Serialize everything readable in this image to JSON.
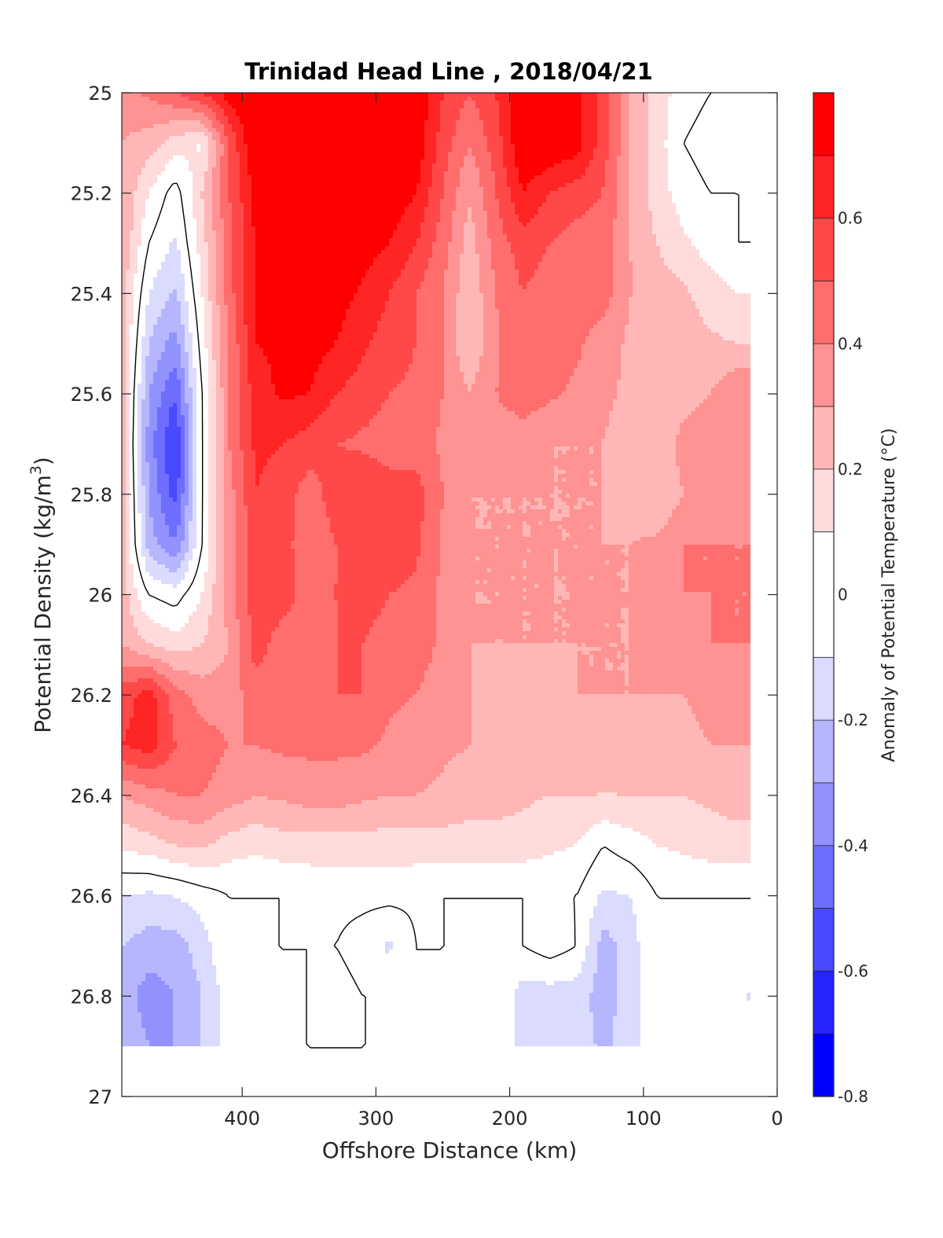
{
  "chart_data": {
    "type": "heatmap",
    "title": "Trinidad Head Line , 2018/04/21",
    "xlabel": "Offshore Distance (km)",
    "ylabel": "Potential Density (kg/m",
    "ylabel_superscript": "3",
    "ylabel_suffix": ")",
    "xlim": [
      490,
      0
    ],
    "x_reversed": true,
    "ylim": [
      25,
      27
    ],
    "y_reversed": true,
    "x_ticks": [
      400,
      300,
      200,
      100,
      0
    ],
    "y_ticks": [
      25,
      25.2,
      25.4,
      25.6,
      25.8,
      26,
      26.2,
      26.4,
      26.6,
      26.8,
      27
    ],
    "colorbar": {
      "label": "Anomaly of Potential Temperature (°C)",
      "range": [
        -0.8,
        0.8
      ],
      "ticks": [
        -0.8,
        -0.6,
        -0.4,
        -0.2,
        0,
        0.2,
        0.4,
        0.6
      ],
      "levels": [
        -0.8,
        -0.7,
        -0.6,
        -0.5,
        -0.4,
        -0.3,
        -0.2,
        -0.1,
        0.1,
        0.2,
        0.3,
        0.4,
        0.5,
        0.6,
        0.7,
        0.8
      ],
      "colors": [
        "#0000ff",
        "#2525ff",
        "#4949ff",
        "#6d6dff",
        "#9292ff",
        "#b6b6ff",
        "#dbdbff",
        "#ffffff",
        "#ffdbdb",
        "#ffb6b6",
        "#ff9292",
        "#ff6d6d",
        "#ff4949",
        "#ff2525",
        "#ff0000"
      ]
    },
    "data_extent": {
      "x": [
        490,
        20
      ],
      "y": [
        25,
        26.9
      ]
    },
    "x_nodes": [
      490,
      470,
      450,
      430,
      410,
      390,
      370,
      350,
      330,
      310,
      290,
      270,
      250,
      230,
      210,
      190,
      170,
      150,
      130,
      110,
      90,
      70,
      50,
      30,
      20
    ],
    "y_nodes": [
      25.0,
      25.1,
      25.2,
      25.3,
      25.4,
      25.5,
      25.6,
      25.7,
      25.8,
      25.9,
      26.0,
      26.1,
      26.2,
      26.3,
      26.4,
      26.5,
      26.6,
      26.7,
      26.8,
      26.9
    ],
    "anomaly_grid": [
      [
        0.35,
        0.42,
        0.5,
        0.6,
        0.75,
        0.82,
        0.85,
        0.85,
        0.82,
        0.8,
        0.8,
        0.78,
        0.6,
        0.5,
        0.6,
        0.8,
        0.8,
        0.75,
        0.55,
        0.3,
        0.15,
        0.05,
        0.0,
        0.0,
        0.0
      ],
      [
        0.3,
        0.25,
        0.15,
        0.08,
        0.5,
        0.82,
        0.82,
        0.82,
        0.82,
        0.8,
        0.8,
        0.78,
        0.55,
        0.4,
        0.55,
        0.8,
        0.8,
        0.75,
        0.55,
        0.3,
        0.15,
        0.0,
        -0.05,
        0.0,
        0.0
      ],
      [
        0.3,
        0.1,
        -0.05,
        0.2,
        0.5,
        0.72,
        0.82,
        0.82,
        0.82,
        0.8,
        0.78,
        0.7,
        0.5,
        0.3,
        0.5,
        0.7,
        0.6,
        0.55,
        0.5,
        0.3,
        0.15,
        0.05,
        0.0,
        0.0,
        0.0
      ],
      [
        0.3,
        0.0,
        -0.12,
        0.15,
        0.45,
        0.72,
        0.78,
        0.82,
        0.8,
        0.75,
        0.7,
        0.6,
        0.45,
        0.25,
        0.45,
        0.55,
        0.5,
        0.45,
        0.45,
        0.3,
        0.2,
        0.12,
        0.05,
        0.0,
        0.0
      ],
      [
        0.25,
        -0.1,
        -0.22,
        0.1,
        0.45,
        0.72,
        0.75,
        0.8,
        0.75,
        0.68,
        0.6,
        0.5,
        0.4,
        0.22,
        0.4,
        0.5,
        0.45,
        0.45,
        0.45,
        0.3,
        0.25,
        0.22,
        0.15,
        0.1,
        0.1
      ],
      [
        0.25,
        -0.2,
        -0.35,
        0.05,
        0.4,
        0.7,
        0.72,
        0.75,
        0.7,
        0.62,
        0.55,
        0.5,
        0.4,
        0.2,
        0.4,
        0.45,
        0.45,
        0.42,
        0.35,
        0.28,
        0.25,
        0.25,
        0.22,
        0.2,
        0.2
      ],
      [
        0.25,
        -0.3,
        -0.5,
        0.0,
        0.4,
        0.65,
        0.72,
        0.7,
        0.6,
        0.55,
        0.5,
        0.48,
        0.4,
        0.3,
        0.4,
        0.45,
        0.42,
        0.38,
        0.32,
        0.28,
        0.2,
        0.25,
        0.3,
        0.4,
        0.4
      ],
      [
        0.25,
        -0.35,
        -0.62,
        0.0,
        0.4,
        0.62,
        0.6,
        0.55,
        0.5,
        0.48,
        0.45,
        0.45,
        0.38,
        0.3,
        0.35,
        0.35,
        0.3,
        0.3,
        0.3,
        0.25,
        0.2,
        0.35,
        0.38,
        0.38,
        0.38
      ],
      [
        0.25,
        -0.3,
        -0.55,
        0.0,
        0.35,
        0.6,
        0.55,
        0.45,
        0.55,
        0.6,
        0.55,
        0.55,
        0.4,
        0.3,
        0.3,
        0.3,
        0.3,
        0.3,
        0.3,
        0.25,
        0.2,
        0.3,
        0.38,
        0.38,
        0.38
      ],
      [
        0.25,
        -0.25,
        -0.4,
        0.0,
        0.35,
        0.55,
        0.55,
        0.42,
        0.5,
        0.55,
        0.55,
        0.52,
        0.38,
        0.3,
        0.3,
        0.3,
        0.3,
        0.3,
        0.3,
        0.3,
        0.32,
        0.4,
        0.4,
        0.4,
        0.4
      ],
      [
        0.25,
        0.0,
        -0.05,
        0.1,
        0.35,
        0.55,
        0.55,
        0.45,
        0.5,
        0.55,
        0.5,
        0.48,
        0.38,
        0.3,
        0.3,
        0.3,
        0.3,
        0.3,
        0.3,
        0.3,
        0.35,
        0.4,
        0.4,
        0.4,
        0.4
      ],
      [
        0.3,
        0.2,
        0.15,
        0.2,
        0.3,
        0.55,
        0.45,
        0.45,
        0.5,
        0.5,
        0.45,
        0.45,
        0.38,
        0.3,
        0.3,
        0.3,
        0.3,
        0.3,
        0.3,
        0.3,
        0.35,
        0.38,
        0.4,
        0.4,
        0.4
      ],
      [
        0.55,
        0.65,
        0.45,
        0.35,
        0.35,
        0.45,
        0.4,
        0.45,
        0.5,
        0.5,
        0.42,
        0.4,
        0.35,
        0.3,
        0.28,
        0.3,
        0.28,
        0.3,
        0.3,
        0.3,
        0.3,
        0.3,
        0.35,
        0.35,
        0.35
      ],
      [
        0.6,
        0.65,
        0.5,
        0.45,
        0.4,
        0.4,
        0.42,
        0.42,
        0.42,
        0.42,
        0.38,
        0.35,
        0.32,
        0.3,
        0.3,
        0.3,
        0.25,
        0.25,
        0.25,
        0.25,
        0.25,
        0.25,
        0.3,
        0.3,
        0.3
      ],
      [
        0.3,
        0.35,
        0.4,
        0.4,
        0.35,
        0.3,
        0.32,
        0.35,
        0.35,
        0.32,
        0.3,
        0.3,
        0.28,
        0.25,
        0.25,
        0.22,
        0.2,
        0.2,
        0.2,
        0.2,
        0.2,
        0.2,
        0.22,
        0.25,
        0.25
      ],
      [
        0.12,
        0.15,
        0.2,
        0.22,
        0.15,
        0.12,
        0.15,
        0.15,
        0.15,
        0.15,
        0.15,
        0.15,
        0.15,
        0.15,
        0.15,
        0.15,
        0.12,
        0.1,
        0.0,
        0.05,
        0.1,
        0.12,
        0.15,
        0.15,
        0.15
      ],
      [
        -0.1,
        -0.12,
        -0.1,
        -0.05,
        0.0,
        0.0,
        0.0,
        0.02,
        0.03,
        0.03,
        0.03,
        0.02,
        0.0,
        0.0,
        0.0,
        0.0,
        0.0,
        0.0,
        -0.12,
        -0.1,
        0.0,
        0.0,
        0.0,
        0.0,
        0.0
      ],
      [
        -0.2,
        -0.25,
        -0.25,
        -0.15,
        0.0,
        0.0,
        0.0,
        0.0,
        0.0,
        -0.05,
        -0.12,
        0.0,
        0.0,
        0.0,
        0.0,
        0.0,
        0.05,
        0.0,
        -0.25,
        -0.15,
        0.0,
        0.0,
        0.0,
        0.0,
        0.0
      ],
      [
        -0.25,
        -0.35,
        -0.3,
        -0.2,
        -0.05,
        0.0,
        0.0,
        0.0,
        0.05,
        0.0,
        0.0,
        0.0,
        0.0,
        0.0,
        0.0,
        -0.15,
        -0.15,
        -0.15,
        -0.25,
        -0.15,
        0.0,
        0.0,
        0.0,
        -0.05,
        -0.12
      ],
      [
        -0.2,
        -0.3,
        -0.3,
        -0.2,
        -0.05,
        0.0,
        0.0,
        0.0,
        0.0,
        0.0,
        0.0,
        0.0,
        0.0,
        0.0,
        0.0,
        -0.15,
        -0.12,
        -0.15,
        -0.22,
        -0.15,
        0.0,
        0.0,
        0.0,
        0.0,
        0.0
      ]
    ]
  }
}
